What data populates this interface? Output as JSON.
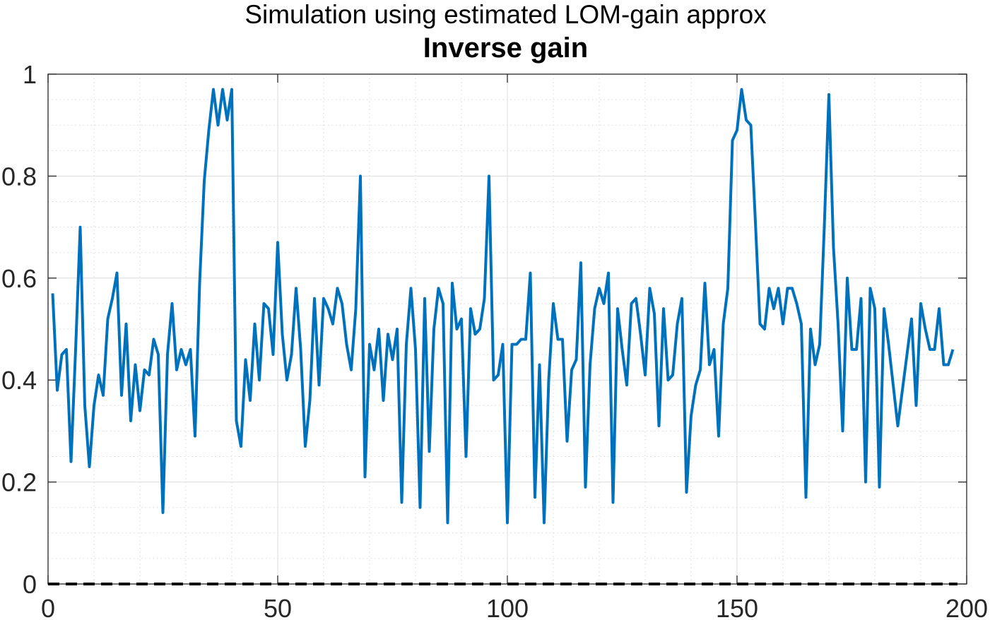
{
  "supertitle": "Simulation using estimated LOM-gain approx",
  "title": "Inverse gain",
  "chart_data": {
    "type": "line",
    "title": "Inverse gain",
    "subtitle": "Simulation using estimated LOM-gain approx",
    "xlabel": "",
    "ylabel": "",
    "xlim": [
      0,
      200
    ],
    "ylim": [
      0,
      1
    ],
    "xticks": [
      0,
      50,
      100,
      150,
      200
    ],
    "yticks": [
      0,
      0.2,
      0.4,
      0.6,
      0.8,
      1
    ],
    "xtick_labels": [
      "0",
      "50",
      "100",
      "150",
      "200"
    ],
    "ytick_labels": [
      "0",
      "0.2",
      "0.4",
      "0.6",
      "0.8",
      "1"
    ],
    "grid": true,
    "minor_grid": true,
    "colors": {
      "series": "#0072BD",
      "zero_line": "#000000",
      "grid": "#dcdcdc",
      "axes": "#262626"
    },
    "series": [
      {
        "style": "solid",
        "color": "#0072BD",
        "x_start": 1,
        "x_step": 1,
        "values": [
          0.57,
          0.38,
          0.45,
          0.46,
          0.24,
          0.46,
          0.7,
          0.35,
          0.23,
          0.35,
          0.41,
          0.37,
          0.52,
          0.56,
          0.61,
          0.37,
          0.51,
          0.32,
          0.43,
          0.34,
          0.42,
          0.41,
          0.48,
          0.45,
          0.14,
          0.45,
          0.55,
          0.42,
          0.46,
          0.43,
          0.46,
          0.29,
          0.59,
          0.79,
          0.89,
          0.97,
          0.9,
          0.97,
          0.91,
          0.97,
          0.32,
          0.27,
          0.44,
          0.36,
          0.51,
          0.4,
          0.55,
          0.54,
          0.45,
          0.67,
          0.49,
          0.4,
          0.45,
          0.58,
          0.46,
          0.27,
          0.36,
          0.56,
          0.39,
          0.56,
          0.54,
          0.51,
          0.58,
          0.55,
          0.47,
          0.42,
          0.54,
          0.8,
          0.21,
          0.47,
          0.42,
          0.5,
          0.36,
          0.49,
          0.44,
          0.5,
          0.16,
          0.47,
          0.58,
          0.46,
          0.15,
          0.56,
          0.26,
          0.5,
          0.58,
          0.55,
          0.12,
          0.59,
          0.5,
          0.52,
          0.25,
          0.54,
          0.49,
          0.5,
          0.56,
          0.8,
          0.4,
          0.41,
          0.47,
          0.12,
          0.47,
          0.47,
          0.48,
          0.48,
          0.61,
          0.17,
          0.43,
          0.12,
          0.4,
          0.55,
          0.48,
          0.48,
          0.28,
          0.42,
          0.44,
          0.63,
          0.19,
          0.43,
          0.54,
          0.58,
          0.55,
          0.61,
          0.16,
          0.54,
          0.46,
          0.39,
          0.55,
          0.56,
          0.49,
          0.41,
          0.58,
          0.53,
          0.31,
          0.54,
          0.4,
          0.41,
          0.51,
          0.56,
          0.18,
          0.33,
          0.39,
          0.42,
          0.59,
          0.43,
          0.46,
          0.29,
          0.51,
          0.58,
          0.87,
          0.89,
          0.97,
          0.91,
          0.9,
          0.71,
          0.51,
          0.5,
          0.58,
          0.54,
          0.58,
          0.51,
          0.58,
          0.58,
          0.55,
          0.51,
          0.17,
          0.5,
          0.43,
          0.47,
          0.7,
          0.96,
          0.66,
          0.51,
          0.3,
          0.6,
          0.46,
          0.46,
          0.56,
          0.2,
          0.58,
          0.54,
          0.19,
          0.54,
          0.47,
          0.39,
          0.31,
          0.38,
          0.45,
          0.52,
          0.35,
          0.55,
          0.5,
          0.46,
          0.46,
          0.54,
          0.43,
          0.43,
          0.46
        ]
      },
      {
        "style": "dashed",
        "color": "#000000",
        "x": [
          0,
          198
        ],
        "values": [
          0,
          0
        ]
      }
    ]
  }
}
